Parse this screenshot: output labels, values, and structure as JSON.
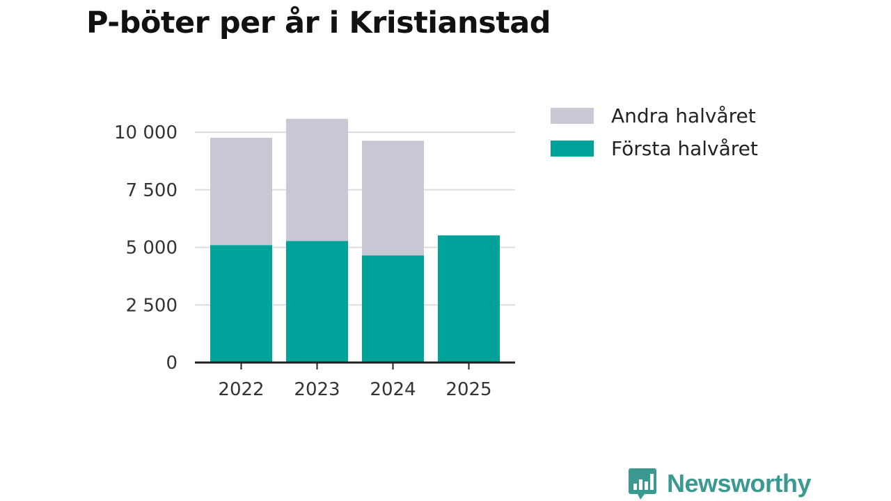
{
  "title": "P-böter per år i Kristianstad",
  "brand": "Newsworthy",
  "colors": {
    "first_half": "#00a39a",
    "second_half": "#c8c7d3",
    "grid": "#dddddd",
    "axis": "#222222",
    "brand": "#3a9a92"
  },
  "chart_data": {
    "type": "bar",
    "stacked": true,
    "title": "P-böter per år i Kristianstad",
    "categories": [
      "2022",
      "2023",
      "2024",
      "2025"
    ],
    "series": [
      {
        "name": "Första halvåret",
        "values": [
          5100,
          5280,
          4650,
          5520
        ]
      },
      {
        "name": "Andra halvåret",
        "values": [
          4660,
          5300,
          4980,
          0
        ]
      }
    ],
    "ylim": [
      0,
      10000
    ],
    "yticks": [
      0,
      2500,
      5000,
      7500,
      10000
    ],
    "ytick_labels": [
      "0",
      "2 500",
      "5 000",
      "7 500",
      "10 000"
    ],
    "legend": [
      "Andra halvåret",
      "Första halvåret"
    ],
    "legend_position": "top-right",
    "grid": true
  }
}
